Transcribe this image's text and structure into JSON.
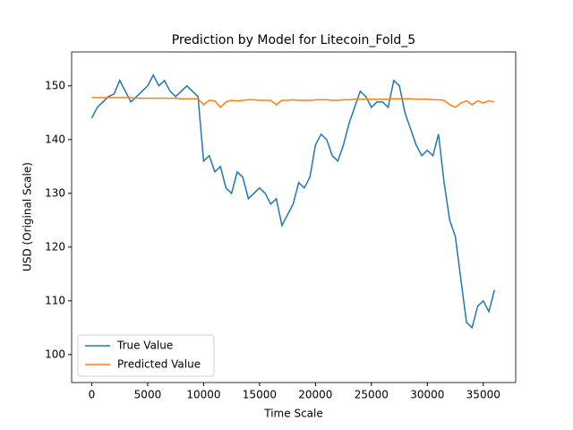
{
  "chart_data": {
    "type": "line",
    "title": "Prediction by Model for Litecoin_Fold_5",
    "x_label": "Time Scale",
    "y_label": "USD (Original Scale)",
    "x": [
      0,
      500,
      1000,
      1500,
      2000,
      2500,
      3000,
      3500,
      4000,
      4500,
      5000,
      5500,
      6000,
      6500,
      7000,
      7500,
      8000,
      8500,
      9000,
      9500,
      10000,
      10500,
      11000,
      11500,
      12000,
      12500,
      13000,
      13500,
      14000,
      14500,
      15000,
      15500,
      16000,
      16500,
      17000,
      17500,
      18000,
      18500,
      19000,
      19500,
      20000,
      20500,
      21000,
      21500,
      22000,
      22500,
      23000,
      23500,
      24000,
      24500,
      25000,
      25500,
      26000,
      26500,
      27000,
      27500,
      28000,
      28500,
      29000,
      29500,
      30000,
      30500,
      31000,
      31500,
      32000,
      32500,
      33000,
      33500,
      34000,
      34500,
      35000,
      35500,
      36000
    ],
    "series": [
      {
        "name": "True Value",
        "color": "#1f77b4",
        "values": [
          144,
          146,
          147,
          148,
          148.5,
          151,
          149,
          147,
          148,
          149,
          150,
          152,
          150,
          151,
          149,
          148,
          149,
          150,
          149,
          148,
          136,
          137,
          134,
          135,
          131,
          130,
          134,
          133,
          129,
          130,
          131,
          130,
          128,
          129,
          124,
          126,
          128,
          132,
          131,
          133,
          139,
          141,
          140,
          137,
          136,
          139,
          143,
          146,
          149,
          148,
          146,
          147,
          147,
          146,
          151,
          150,
          145,
          142,
          139,
          137,
          138,
          137,
          141,
          132,
          125,
          122,
          114,
          106,
          105,
          109,
          110,
          108,
          112
        ]
      },
      {
        "name": "Predicted Value",
        "color": "#ff7f0e",
        "values": [
          147.8,
          147.8,
          147.8,
          147.8,
          147.8,
          147.8,
          147.8,
          147.8,
          147.7,
          147.7,
          147.7,
          147.7,
          147.7,
          147.7,
          147.7,
          147.7,
          147.6,
          147.6,
          147.6,
          147.6,
          146.5,
          147.3,
          147.2,
          146,
          147,
          147.3,
          147.2,
          147.3,
          147.4,
          147.4,
          147.3,
          147.3,
          147.3,
          146.5,
          147.3,
          147.3,
          147.4,
          147.3,
          147.3,
          147.3,
          147.4,
          147.4,
          147.4,
          147.3,
          147.3,
          147.4,
          147.4,
          147.5,
          147.5,
          147.5,
          147.5,
          147.5,
          147.5,
          147.5,
          147.6,
          147.6,
          147.6,
          147.6,
          147.5,
          147.5,
          147.5,
          147.4,
          147.4,
          147.3,
          146.5,
          146,
          146.8,
          147.2,
          146.5,
          147.2,
          146.8,
          147.2,
          147
        ]
      }
    ],
    "xlim": [
      -1800,
      37900
    ],
    "ylim": [
      94.8,
      156.3
    ],
    "xticks": [
      0,
      5000,
      10000,
      15000,
      20000,
      25000,
      30000,
      35000
    ],
    "yticks": [
      100,
      110,
      120,
      130,
      140,
      150
    ],
    "legend": "lower left"
  }
}
